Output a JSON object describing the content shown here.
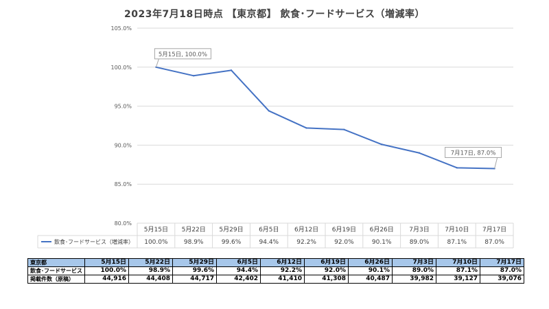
{
  "title": "2023年7月18日時点 【東京都】 飲食･フードサービス（増減率）",
  "chart_data": {
    "type": "line",
    "categories": [
      "5月15日",
      "5月22日",
      "5月29日",
      "6月5日",
      "6月12日",
      "6月19日",
      "6月26日",
      "7月3日",
      "7月10日",
      "7月17日"
    ],
    "series": [
      {
        "name": "飲食･フードサービス（増減率）",
        "values": [
          100.0,
          98.9,
          99.6,
          94.4,
          92.2,
          92.0,
          90.1,
          89.0,
          87.1,
          87.0
        ],
        "labels": [
          "100.0%",
          "98.9%",
          "99.6%",
          "94.4%",
          "92.2%",
          "92.0%",
          "90.1%",
          "89.0%",
          "87.1%",
          "87.0%"
        ],
        "color": "#4472c4"
      }
    ],
    "y_ticks": [
      "80.0%",
      "85.0%",
      "90.0%",
      "95.0%",
      "100.0%",
      "105.0%"
    ],
    "y_tick_values": [
      80,
      85,
      90,
      95,
      100,
      105
    ],
    "ylim": [
      80,
      105
    ],
    "grid": true,
    "annotations": [
      {
        "point_index": 0,
        "text": "5月15日, 100.0%"
      },
      {
        "point_index": 9,
        "text": "7月17日, 87.0%"
      }
    ]
  },
  "table": {
    "header_label": "東京都",
    "dates": [
      "5月15日",
      "5月22日",
      "5月29日",
      "6月5日",
      "6月12日",
      "6月19日",
      "6月26日",
      "7月3日",
      "7月10日",
      "7月17日"
    ],
    "rows": [
      {
        "label": "飲食･フードサービス",
        "values": [
          "100.0%",
          "98.9%",
          "99.6%",
          "94.4%",
          "92.2%",
          "92.0%",
          "90.1%",
          "89.0%",
          "87.1%",
          "87.0%"
        ]
      },
      {
        "label": "掲載件数（原稿）",
        "values": [
          "44,916",
          "44,408",
          "44,717",
          "42,402",
          "41,410",
          "41,308",
          "40,487",
          "39,982",
          "39,127",
          "39,076"
        ]
      }
    ]
  }
}
